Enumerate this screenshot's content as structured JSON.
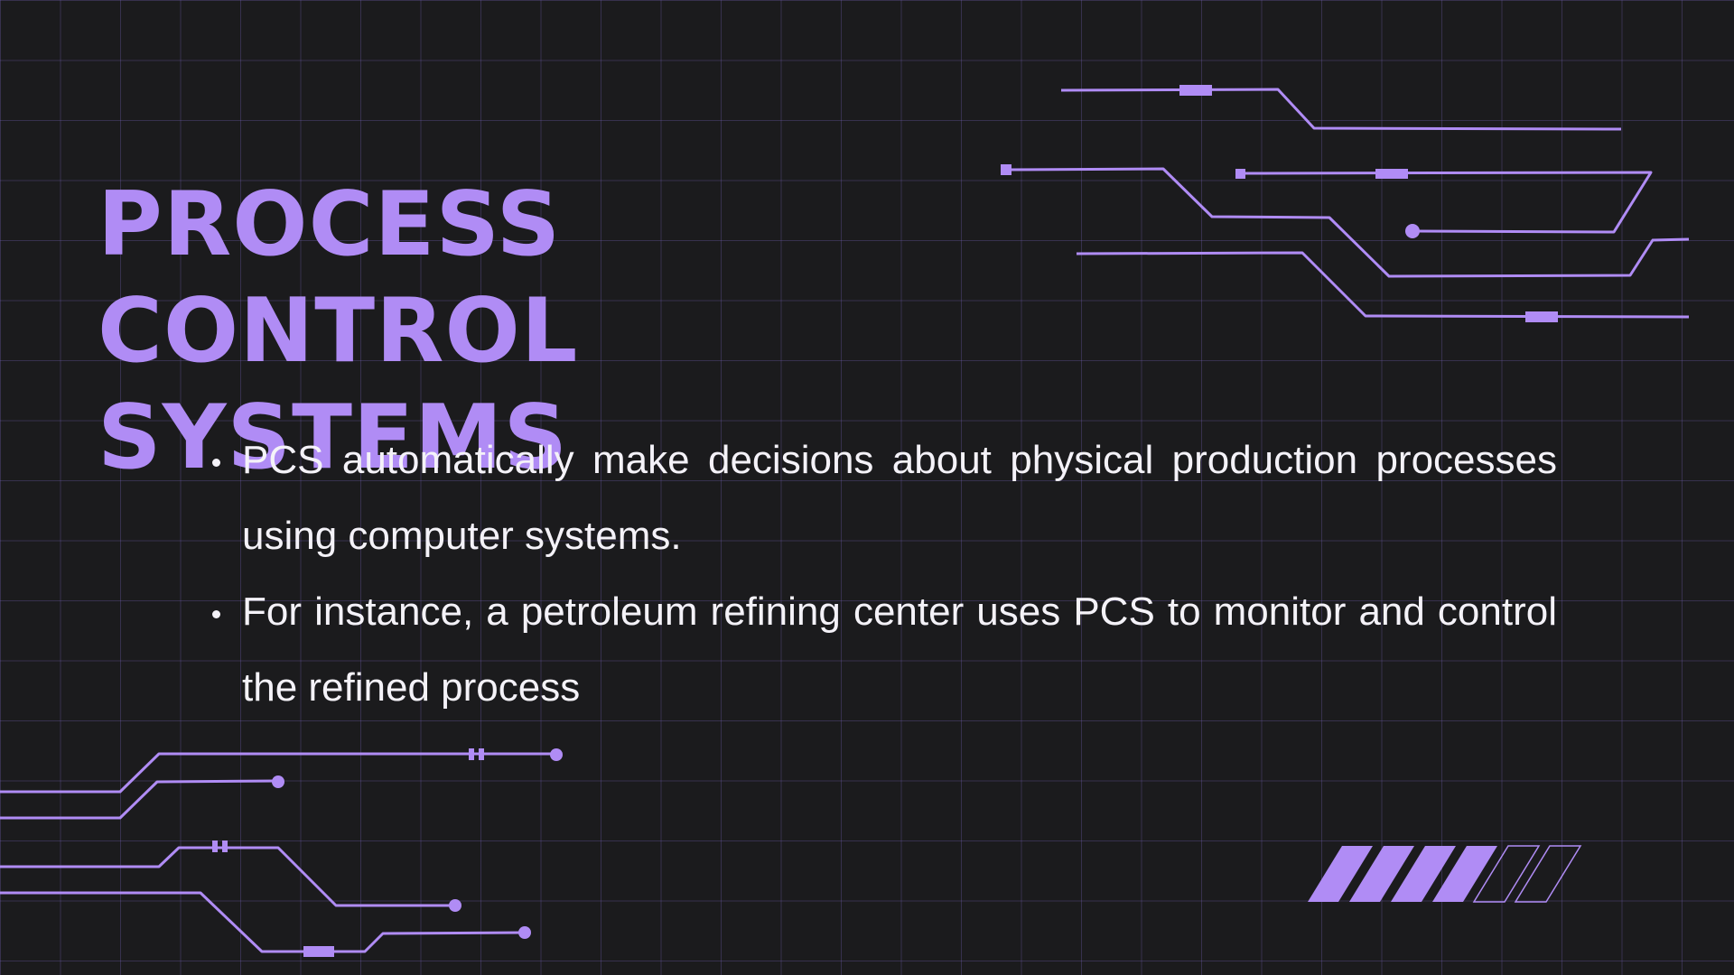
{
  "slide": {
    "title": "PROCESS CONTROL SYSTEMS",
    "bullets": [
      "PCS automatically make decisions about physical production processes using computer systems.",
      "For instance, a petroleum refining center uses PCS to monitor and control the refined process"
    ],
    "progress_indicator": {
      "filled_segments": 4,
      "total_segments": 6
    }
  },
  "colors": {
    "background": "#1b1b1d",
    "accent": "#b08cf5",
    "text": "#f4f2f8",
    "grid": "#4a3f72"
  }
}
